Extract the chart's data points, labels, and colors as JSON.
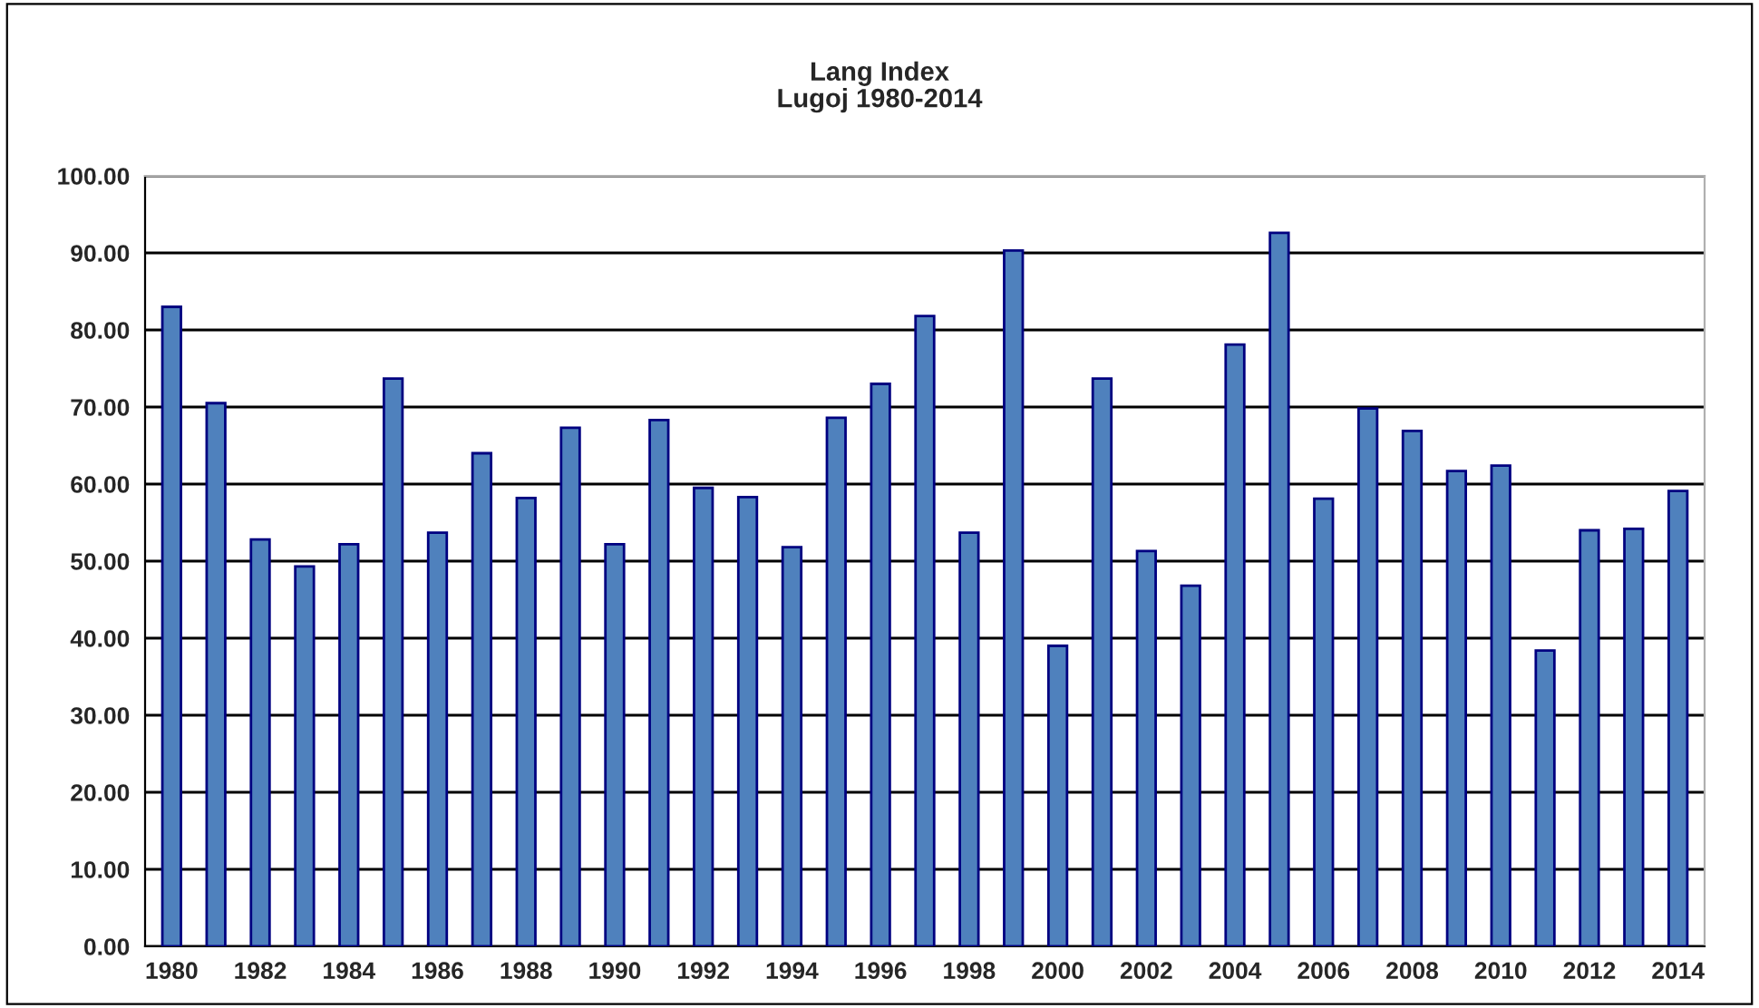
{
  "chart_data": {
    "type": "bar",
    "title": "Lang Index\nLugoj 1980-2014",
    "categories": [
      "1980",
      null,
      "1982",
      null,
      "1984",
      null,
      "1986",
      null,
      "1988",
      null,
      "1990",
      null,
      "1992",
      null,
      "1994",
      null,
      "1996",
      null,
      "1998",
      null,
      "2000",
      null,
      "2002",
      null,
      "2004",
      null,
      "2006",
      null,
      "2008",
      null,
      "2010",
      null,
      "2012",
      null,
      "2014"
    ],
    "values": [
      83.0,
      70.5,
      52.8,
      49.3,
      52.2,
      73.7,
      53.7,
      64.0,
      58.2,
      67.3,
      52.2,
      68.3,
      59.5,
      58.3,
      51.8,
      68.6,
      73.0,
      81.8,
      53.7,
      90.3,
      39.0,
      73.7,
      51.3,
      46.8,
      78.1,
      92.6,
      58.1,
      69.8,
      66.9,
      61.7,
      62.4,
      38.4,
      54.0,
      54.2,
      59.1
    ],
    "color": "#4f81bd",
    "ylim": [
      0,
      100
    ],
    "yticks": [
      {
        "value": 0,
        "label": "0.00"
      },
      {
        "value": 10,
        "label": "10.00"
      },
      {
        "value": 20,
        "label": "20.00"
      },
      {
        "value": 30,
        "label": "30.00"
      },
      {
        "value": 40,
        "label": "40.00"
      },
      {
        "value": 50,
        "label": "50.00"
      },
      {
        "value": 60,
        "label": "60.00"
      },
      {
        "value": 70,
        "label": "70.00"
      },
      {
        "value": 80,
        "label": "80.00"
      },
      {
        "value": 90,
        "label": "90.00"
      },
      {
        "value": 100,
        "label": "100.00"
      }
    ],
    "grid": "y"
  }
}
